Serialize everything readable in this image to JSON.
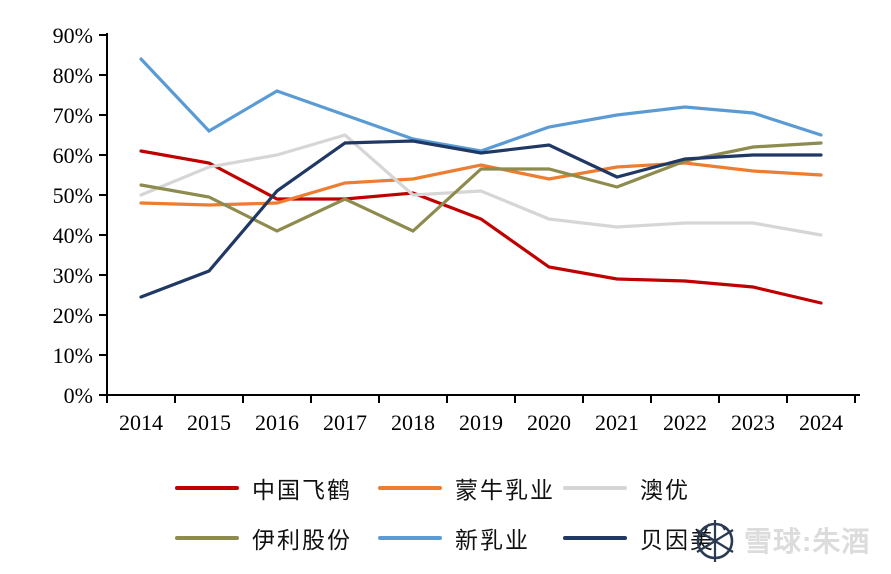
{
  "chart_data": {
    "type": "line",
    "title": "",
    "xlabel": "",
    "ylabel": "",
    "x": [
      "2014",
      "2015",
      "2016",
      "2017",
      "2018",
      "2019",
      "2020",
      "2021",
      "2022",
      "2023",
      "2024"
    ],
    "y_ticks": [
      "0%",
      "10%",
      "20%",
      "30%",
      "40%",
      "50%",
      "60%",
      "70%",
      "80%",
      "90%"
    ],
    "ylim": [
      0,
      90
    ],
    "grid": false,
    "legend_position": "bottom",
    "series": [
      {
        "name": "中国飞鹤",
        "color": "#C00000",
        "values": [
          61,
          58,
          49,
          49,
          50.5,
          44,
          32,
          29,
          28.5,
          27,
          23
        ]
      },
      {
        "name": "蒙牛乳业",
        "color": "#ED7D31",
        "values": [
          48,
          47.5,
          48,
          53,
          54,
          57.5,
          54,
          57,
          58,
          56,
          55
        ]
      },
      {
        "name": "澳优",
        "color": "#D6D6D6",
        "values": [
          50,
          57,
          60,
          65,
          50,
          51,
          44,
          42,
          43,
          43,
          40
        ]
      },
      {
        "name": "伊利股份",
        "color": "#8D8B4E",
        "values": [
          52.5,
          49.5,
          41,
          49,
          41,
          56.5,
          56.5,
          52,
          58.5,
          62,
          63
        ]
      },
      {
        "name": "新乳业",
        "color": "#5B9BD5",
        "values": [
          84,
          66,
          76,
          70,
          64,
          61,
          67,
          70,
          72,
          70.5,
          65
        ]
      },
      {
        "name": "贝因美",
        "color": "#1F3864",
        "values": [
          24.5,
          31,
          51,
          63,
          63.5,
          60.5,
          62.5,
          54.5,
          59,
          60,
          60
        ]
      }
    ]
  },
  "legend": {
    "items": [
      {
        "label": "中国飞鹤"
      },
      {
        "label": "蒙牛乳业"
      },
      {
        "label": "澳优"
      },
      {
        "label": "伊利股份"
      },
      {
        "label": "新乳业"
      },
      {
        "label": "贝因美"
      }
    ]
  },
  "watermark": {
    "text": "雪球:朱酒",
    "icon": "xueqiu-snowball-icon"
  }
}
